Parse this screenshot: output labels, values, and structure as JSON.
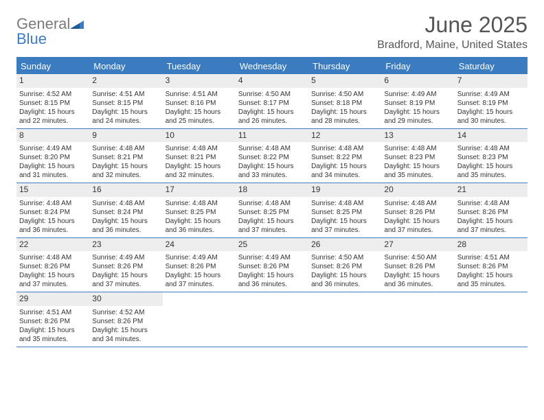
{
  "logo": {
    "word1": "General",
    "word2": "Blue"
  },
  "header": {
    "title": "June 2025",
    "subtitle": "Bradford, Maine, United States"
  },
  "colors": {
    "accent": "#3b7bbf",
    "header_text": "#ffffff",
    "daynum_bg": "#ededed",
    "body_text": "#333333",
    "logo_gray": "#7a7a7a"
  },
  "weekdays": [
    "Sunday",
    "Monday",
    "Tuesday",
    "Wednesday",
    "Thursday",
    "Friday",
    "Saturday"
  ],
  "weeks": [
    [
      {
        "n": "1",
        "sr": "Sunrise: 4:52 AM",
        "ss": "Sunset: 8:15 PM",
        "d1": "Daylight: 15 hours",
        "d2": "and 22 minutes."
      },
      {
        "n": "2",
        "sr": "Sunrise: 4:51 AM",
        "ss": "Sunset: 8:15 PM",
        "d1": "Daylight: 15 hours",
        "d2": "and 24 minutes."
      },
      {
        "n": "3",
        "sr": "Sunrise: 4:51 AM",
        "ss": "Sunset: 8:16 PM",
        "d1": "Daylight: 15 hours",
        "d2": "and 25 minutes."
      },
      {
        "n": "4",
        "sr": "Sunrise: 4:50 AM",
        "ss": "Sunset: 8:17 PM",
        "d1": "Daylight: 15 hours",
        "d2": "and 26 minutes."
      },
      {
        "n": "5",
        "sr": "Sunrise: 4:50 AM",
        "ss": "Sunset: 8:18 PM",
        "d1": "Daylight: 15 hours",
        "d2": "and 28 minutes."
      },
      {
        "n": "6",
        "sr": "Sunrise: 4:49 AM",
        "ss": "Sunset: 8:19 PM",
        "d1": "Daylight: 15 hours",
        "d2": "and 29 minutes."
      },
      {
        "n": "7",
        "sr": "Sunrise: 4:49 AM",
        "ss": "Sunset: 8:19 PM",
        "d1": "Daylight: 15 hours",
        "d2": "and 30 minutes."
      }
    ],
    [
      {
        "n": "8",
        "sr": "Sunrise: 4:49 AM",
        "ss": "Sunset: 8:20 PM",
        "d1": "Daylight: 15 hours",
        "d2": "and 31 minutes."
      },
      {
        "n": "9",
        "sr": "Sunrise: 4:48 AM",
        "ss": "Sunset: 8:21 PM",
        "d1": "Daylight: 15 hours",
        "d2": "and 32 minutes."
      },
      {
        "n": "10",
        "sr": "Sunrise: 4:48 AM",
        "ss": "Sunset: 8:21 PM",
        "d1": "Daylight: 15 hours",
        "d2": "and 32 minutes."
      },
      {
        "n": "11",
        "sr": "Sunrise: 4:48 AM",
        "ss": "Sunset: 8:22 PM",
        "d1": "Daylight: 15 hours",
        "d2": "and 33 minutes."
      },
      {
        "n": "12",
        "sr": "Sunrise: 4:48 AM",
        "ss": "Sunset: 8:22 PM",
        "d1": "Daylight: 15 hours",
        "d2": "and 34 minutes."
      },
      {
        "n": "13",
        "sr": "Sunrise: 4:48 AM",
        "ss": "Sunset: 8:23 PM",
        "d1": "Daylight: 15 hours",
        "d2": "and 35 minutes."
      },
      {
        "n": "14",
        "sr": "Sunrise: 4:48 AM",
        "ss": "Sunset: 8:23 PM",
        "d1": "Daylight: 15 hours",
        "d2": "and 35 minutes."
      }
    ],
    [
      {
        "n": "15",
        "sr": "Sunrise: 4:48 AM",
        "ss": "Sunset: 8:24 PM",
        "d1": "Daylight: 15 hours",
        "d2": "and 36 minutes."
      },
      {
        "n": "16",
        "sr": "Sunrise: 4:48 AM",
        "ss": "Sunset: 8:24 PM",
        "d1": "Daylight: 15 hours",
        "d2": "and 36 minutes."
      },
      {
        "n": "17",
        "sr": "Sunrise: 4:48 AM",
        "ss": "Sunset: 8:25 PM",
        "d1": "Daylight: 15 hours",
        "d2": "and 36 minutes."
      },
      {
        "n": "18",
        "sr": "Sunrise: 4:48 AM",
        "ss": "Sunset: 8:25 PM",
        "d1": "Daylight: 15 hours",
        "d2": "and 37 minutes."
      },
      {
        "n": "19",
        "sr": "Sunrise: 4:48 AM",
        "ss": "Sunset: 8:25 PM",
        "d1": "Daylight: 15 hours",
        "d2": "and 37 minutes."
      },
      {
        "n": "20",
        "sr": "Sunrise: 4:48 AM",
        "ss": "Sunset: 8:26 PM",
        "d1": "Daylight: 15 hours",
        "d2": "and 37 minutes."
      },
      {
        "n": "21",
        "sr": "Sunrise: 4:48 AM",
        "ss": "Sunset: 8:26 PM",
        "d1": "Daylight: 15 hours",
        "d2": "and 37 minutes."
      }
    ],
    [
      {
        "n": "22",
        "sr": "Sunrise: 4:48 AM",
        "ss": "Sunset: 8:26 PM",
        "d1": "Daylight: 15 hours",
        "d2": "and 37 minutes."
      },
      {
        "n": "23",
        "sr": "Sunrise: 4:49 AM",
        "ss": "Sunset: 8:26 PM",
        "d1": "Daylight: 15 hours",
        "d2": "and 37 minutes."
      },
      {
        "n": "24",
        "sr": "Sunrise: 4:49 AM",
        "ss": "Sunset: 8:26 PM",
        "d1": "Daylight: 15 hours",
        "d2": "and 37 minutes."
      },
      {
        "n": "25",
        "sr": "Sunrise: 4:49 AM",
        "ss": "Sunset: 8:26 PM",
        "d1": "Daylight: 15 hours",
        "d2": "and 36 minutes."
      },
      {
        "n": "26",
        "sr": "Sunrise: 4:50 AM",
        "ss": "Sunset: 8:26 PM",
        "d1": "Daylight: 15 hours",
        "d2": "and 36 minutes."
      },
      {
        "n": "27",
        "sr": "Sunrise: 4:50 AM",
        "ss": "Sunset: 8:26 PM",
        "d1": "Daylight: 15 hours",
        "d2": "and 36 minutes."
      },
      {
        "n": "28",
        "sr": "Sunrise: 4:51 AM",
        "ss": "Sunset: 8:26 PM",
        "d1": "Daylight: 15 hours",
        "d2": "and 35 minutes."
      }
    ],
    [
      {
        "n": "29",
        "sr": "Sunrise: 4:51 AM",
        "ss": "Sunset: 8:26 PM",
        "d1": "Daylight: 15 hours",
        "d2": "and 35 minutes."
      },
      {
        "n": "30",
        "sr": "Sunrise: 4:52 AM",
        "ss": "Sunset: 8:26 PM",
        "d1": "Daylight: 15 hours",
        "d2": "and 34 minutes."
      },
      null,
      null,
      null,
      null,
      null
    ]
  ]
}
